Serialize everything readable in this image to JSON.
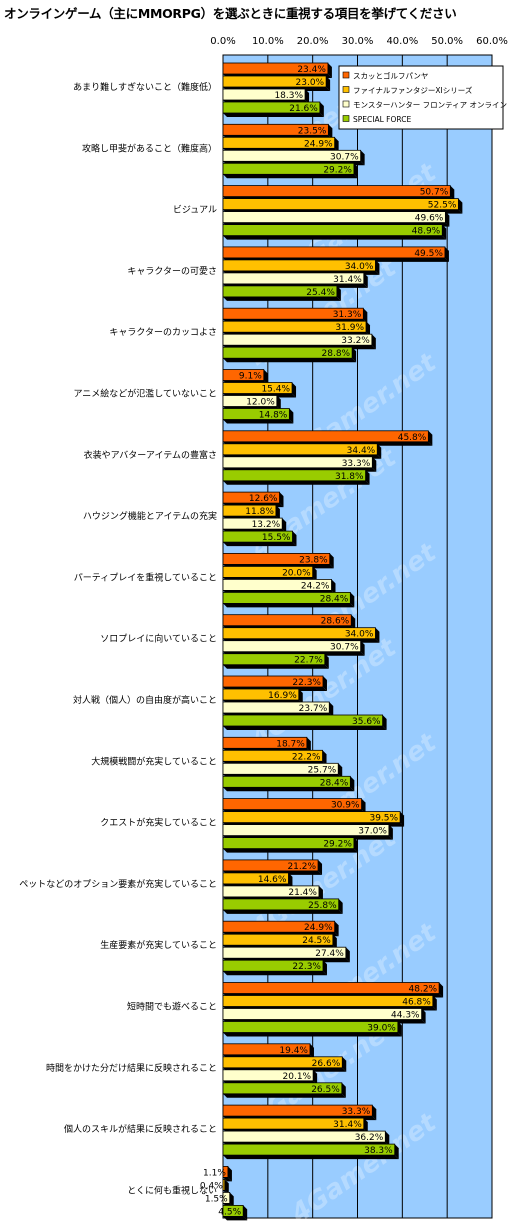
{
  "chart_data": {
    "type": "bar",
    "orientation": "horizontal",
    "title": "オンラインゲーム（主にMMORPG）を選ぶときに重視する項目を挙げてください",
    "xlim": [
      0,
      60
    ],
    "ticks": [
      "0.0%",
      "10.0%",
      "20.0%",
      "30.0%",
      "40.0%",
      "50.0%",
      "60.0%"
    ],
    "grid": true,
    "legend_position": "top-right",
    "value_suffix": "%",
    "categories": [
      "あまり難しすぎないこと（難度低）",
      "攻略し甲斐があること（難度高）",
      "ビジュアル",
      "キャラクターの可愛さ",
      "キャラクターのカッコよさ",
      "アニメ絵などが氾濫していないこと",
      "衣装やアバターアイテムの豊富さ",
      "ハウジング機能とアイテムの充実",
      "パーティプレイを重視していること",
      "ソロプレイに向いていること",
      "対人戦（個人）の自由度が高いこと",
      "大規模戦闘が充実していること",
      "クエストが充実していること",
      "ペットなどのオプション要素が充実していること",
      "生産要素が充実していること",
      "短時間でも遊べること",
      "時間をかけた分だけ結果に反映されること",
      "個人のスキルが結果に反映されること",
      "とくに何も重視しない"
    ],
    "series": [
      {
        "name": "スカッとゴルフパンヤ",
        "color": "#ff6600",
        "values": [
          23.4,
          23.5,
          50.7,
          49.5,
          31.3,
          9.1,
          45.8,
          12.6,
          23.8,
          28.6,
          22.3,
          18.7,
          30.9,
          21.2,
          24.9,
          48.2,
          19.4,
          33.3,
          1.1
        ]
      },
      {
        "name": "ファイナルファンタジーXIシリーズ",
        "color": "#ffc000",
        "values": [
          23.0,
          24.9,
          52.5,
          34.0,
          31.9,
          15.4,
          34.4,
          11.8,
          20.0,
          34.0,
          16.9,
          22.2,
          39.5,
          14.6,
          24.5,
          46.8,
          26.6,
          31.4,
          0.4
        ]
      },
      {
        "name": "モンスターハンター フロンティア オンライン",
        "color": "#ffffcc",
        "values": [
          18.3,
          30.7,
          49.6,
          31.4,
          33.2,
          12.0,
          33.3,
          13.2,
          24.2,
          30.7,
          23.7,
          25.7,
          37.0,
          21.4,
          27.4,
          44.3,
          20.1,
          36.2,
          1.5
        ]
      },
      {
        "name": "SPECIAL FORCE",
        "color": "#99cc00",
        "values": [
          21.6,
          29.2,
          48.9,
          25.4,
          28.8,
          14.8,
          31.8,
          15.5,
          28.4,
          22.7,
          35.6,
          28.4,
          29.2,
          25.8,
          22.3,
          39.0,
          26.5,
          38.3,
          4.5
        ]
      }
    ],
    "plot_background": "#99ccff",
    "watermark": "4Gamer.net"
  }
}
